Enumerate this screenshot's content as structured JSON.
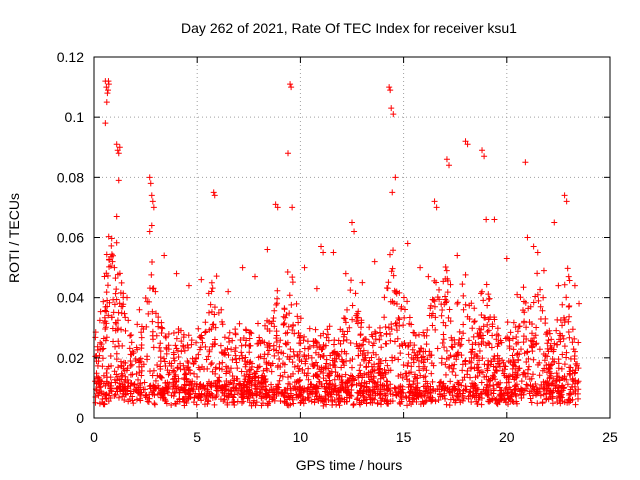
{
  "chart_data": {
    "type": "scatter",
    "title": "Day 262 of 2021, Rate Of TEC Index for receiver ksu1",
    "xlabel": "GPS time / hours",
    "ylabel": "ROTI / TECUs",
    "xlim": [
      0,
      25
    ],
    "ylim": [
      0,
      0.12
    ],
    "xticks": [
      0,
      5,
      10,
      15,
      20,
      25
    ],
    "xtick_labels": [
      "0",
      "5",
      "10",
      "15",
      "20",
      "25"
    ],
    "yticks": [
      0,
      0.02,
      0.04,
      0.06,
      0.08,
      0.1,
      0.12
    ],
    "ytick_labels": [
      "0",
      "0.02",
      "0.04",
      "0.06",
      "0.08",
      "0.1",
      "0.12"
    ],
    "grid": true,
    "marker": "+",
    "color": "#ff0000",
    "series": [
      {
        "name": "ROTI",
        "x": [
          0.55,
          0.6,
          0.65,
          0.7,
          0.55,
          0.62,
          0.68,
          0.72,
          1.1,
          1.15,
          1.2,
          1.25,
          1.2,
          1.1,
          2.7,
          2.75,
          2.8,
          2.85,
          2.9,
          2.8,
          2.7,
          5.8,
          5.85,
          8.8,
          8.9,
          9.5,
          9.55,
          9.4,
          9.6,
          11.0,
          11.1,
          12.5,
          12.6,
          14.3,
          14.35,
          14.4,
          14.5,
          14.6,
          14.45,
          16.5,
          16.6,
          17.1,
          17.2,
          18.0,
          18.1,
          18.8,
          18.9,
          19.0,
          20.9,
          21.0,
          21.3,
          21.5,
          22.3,
          22.8,
          22.9,
          23.3,
          0.3,
          0.9,
          1.6,
          2.2,
          3.4,
          4.0,
          4.6,
          5.2,
          6.5,
          7.2,
          7.8,
          8.4,
          10.2,
          10.8,
          11.6,
          12.2,
          13.0,
          13.6,
          15.2,
          15.8,
          16.2,
          17.6,
          19.4,
          20.0,
          20.5,
          21.8,
          22.5,
          23.0,
          23.5
        ],
        "y": [
          0.112,
          0.11,
          0.108,
          0.112,
          0.098,
          0.105,
          0.109,
          0.111,
          0.091,
          0.089,
          0.088,
          0.09,
          0.079,
          0.067,
          0.08,
          0.078,
          0.074,
          0.072,
          0.07,
          0.064,
          0.062,
          0.075,
          0.074,
          0.071,
          0.07,
          0.111,
          0.11,
          0.088,
          0.07,
          0.057,
          0.055,
          0.065,
          0.062,
          0.11,
          0.109,
          0.103,
          0.101,
          0.08,
          0.075,
          0.072,
          0.07,
          0.086,
          0.084,
          0.092,
          0.091,
          0.089,
          0.087,
          0.066,
          0.085,
          0.06,
          0.057,
          0.055,
          0.065,
          0.074,
          0.072,
          0.044,
          0.025,
          0.052,
          0.04,
          0.036,
          0.054,
          0.048,
          0.044,
          0.046,
          0.042,
          0.05,
          0.047,
          0.056,
          0.05,
          0.043,
          0.055,
          0.048,
          0.045,
          0.052,
          0.058,
          0.05,
          0.047,
          0.054,
          0.066,
          0.053,
          0.041,
          0.049,
          0.044,
          0.047,
          0.038
        ]
      }
    ]
  }
}
